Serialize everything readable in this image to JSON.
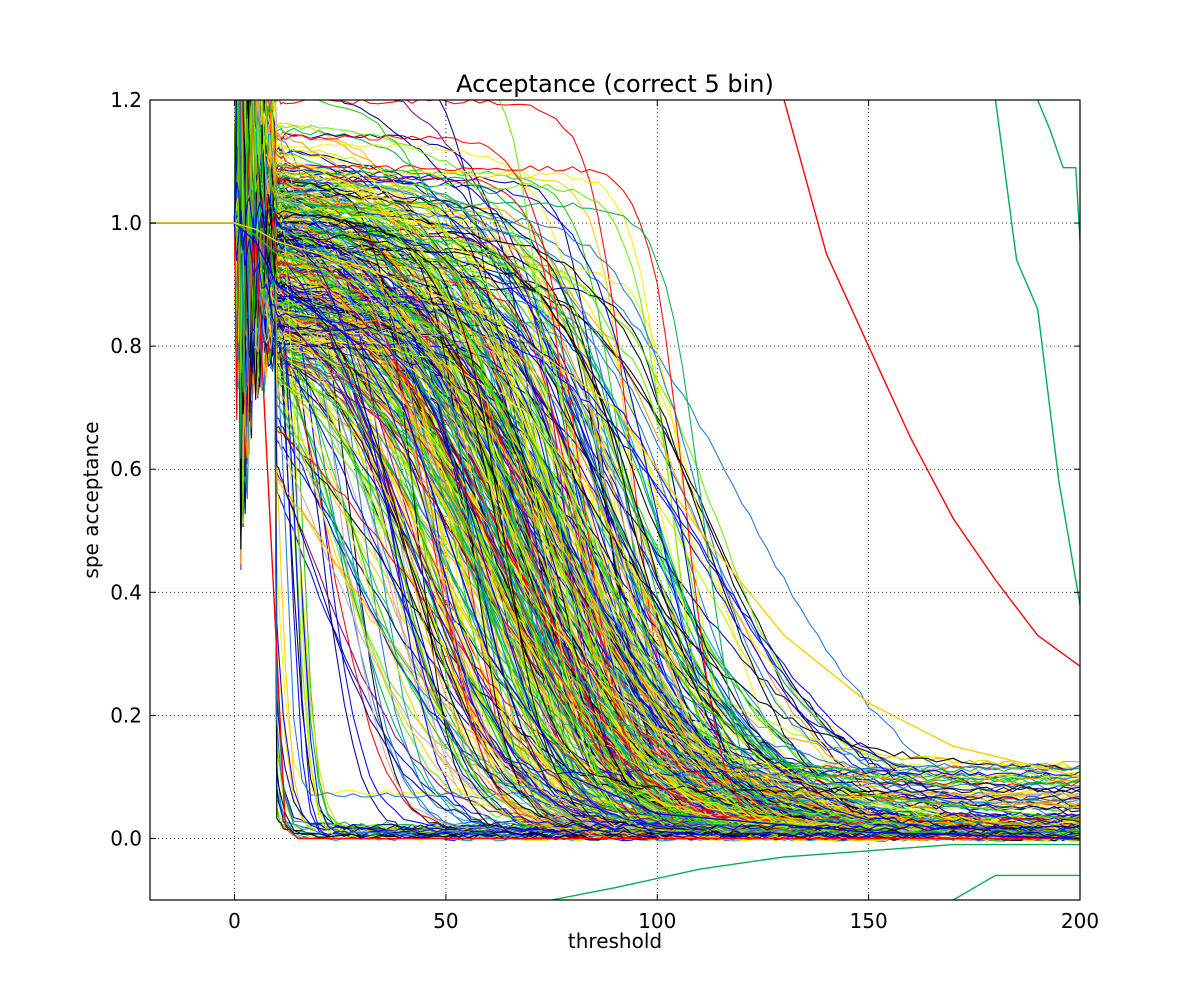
{
  "chart_data": {
    "type": "line",
    "title": "Acceptance (correct 5 bin)",
    "xlabel": "threshold",
    "ylabel": "spe acceptance",
    "xlim": [
      -20,
      200
    ],
    "ylim": [
      -0.1,
      1.2
    ],
    "xticks": [
      0,
      50,
      100,
      150,
      200
    ],
    "yticks": [
      0.0,
      0.2,
      0.4,
      0.6,
      0.8,
      1.0,
      1.2
    ],
    "xtick_labels": [
      "0",
      "50",
      "100",
      "150",
      "200"
    ],
    "ytick_labels": [
      "0.0",
      "0.2",
      "0.4",
      "0.6",
      "0.8",
      "1.0",
      "1.2"
    ],
    "grid": true,
    "grid_style": "dotted",
    "legend": "none",
    "colormap": [
      "#00008b",
      "#0000ff",
      "#1f77d4",
      "#00a0c8",
      "#00b050",
      "#22cc00",
      "#66ee00",
      "#c8f000",
      "#ffee00",
      "#ffcc00",
      "#ff9900",
      "#ff0000",
      "#8b008b",
      "#c8a8a8",
      "#000000"
    ],
    "series_count": 500,
    "series_shape": "each series starts at 1.0 below threshold 0, then falls with threshold toward 0.0; most curves cross 0.5 between thresholds 40 and 130",
    "representative_series": [
      {
        "x": [
          -20,
          0,
          5,
          10,
          12,
          15,
          200
        ],
        "y": [
          1.0,
          1.0,
          0.98,
          0.3,
          0.02,
          0.0,
          0.0
        ]
      },
      {
        "x": [
          -20,
          0,
          5,
          10,
          20,
          30,
          40,
          50,
          60,
          80,
          100,
          150,
          200
        ],
        "y": [
          1.0,
          1.0,
          0.97,
          0.9,
          0.85,
          0.8,
          0.7,
          0.5,
          0.3,
          0.1,
          0.04,
          0.01,
          0.0
        ]
      },
      {
        "x": [
          -20,
          0,
          5,
          10,
          30,
          50,
          70,
          90,
          110,
          130,
          150,
          200
        ],
        "y": [
          1.0,
          1.0,
          0.98,
          0.95,
          0.9,
          0.82,
          0.65,
          0.4,
          0.22,
          0.12,
          0.07,
          0.03
        ]
      },
      {
        "x": [
          -20,
          0,
          5,
          10,
          30,
          60,
          90,
          110,
          130,
          150,
          170,
          200
        ],
        "y": [
          1.0,
          1.0,
          0.99,
          0.97,
          0.93,
          0.85,
          0.7,
          0.5,
          0.33,
          0.22,
          0.15,
          0.1
        ]
      },
      {
        "x": [
          130,
          140,
          150,
          160,
          170,
          180,
          190,
          200
        ],
        "y": [
          1.2,
          0.95,
          0.8,
          0.65,
          0.52,
          0.42,
          0.33,
          0.28
        ]
      },
      {
        "x": [
          190,
          193,
          196,
          199,
          200
        ],
        "y": [
          1.2,
          1.15,
          1.09,
          1.09,
          0.97
        ]
      },
      {
        "x": [
          180,
          185,
          190,
          195,
          200
        ],
        "y": [
          1.2,
          0.94,
          0.86,
          0.58,
          0.38
        ]
      },
      {
        "x": [
          75,
          90,
          110,
          130,
          150,
          170,
          200
        ],
        "y": [
          -0.1,
          -0.08,
          -0.05,
          -0.03,
          -0.02,
          -0.01,
          -0.01
        ]
      },
      {
        "x": [
          170,
          175,
          180,
          200
        ],
        "y": [
          -0.1,
          -0.08,
          -0.06,
          -0.06
        ]
      }
    ]
  }
}
